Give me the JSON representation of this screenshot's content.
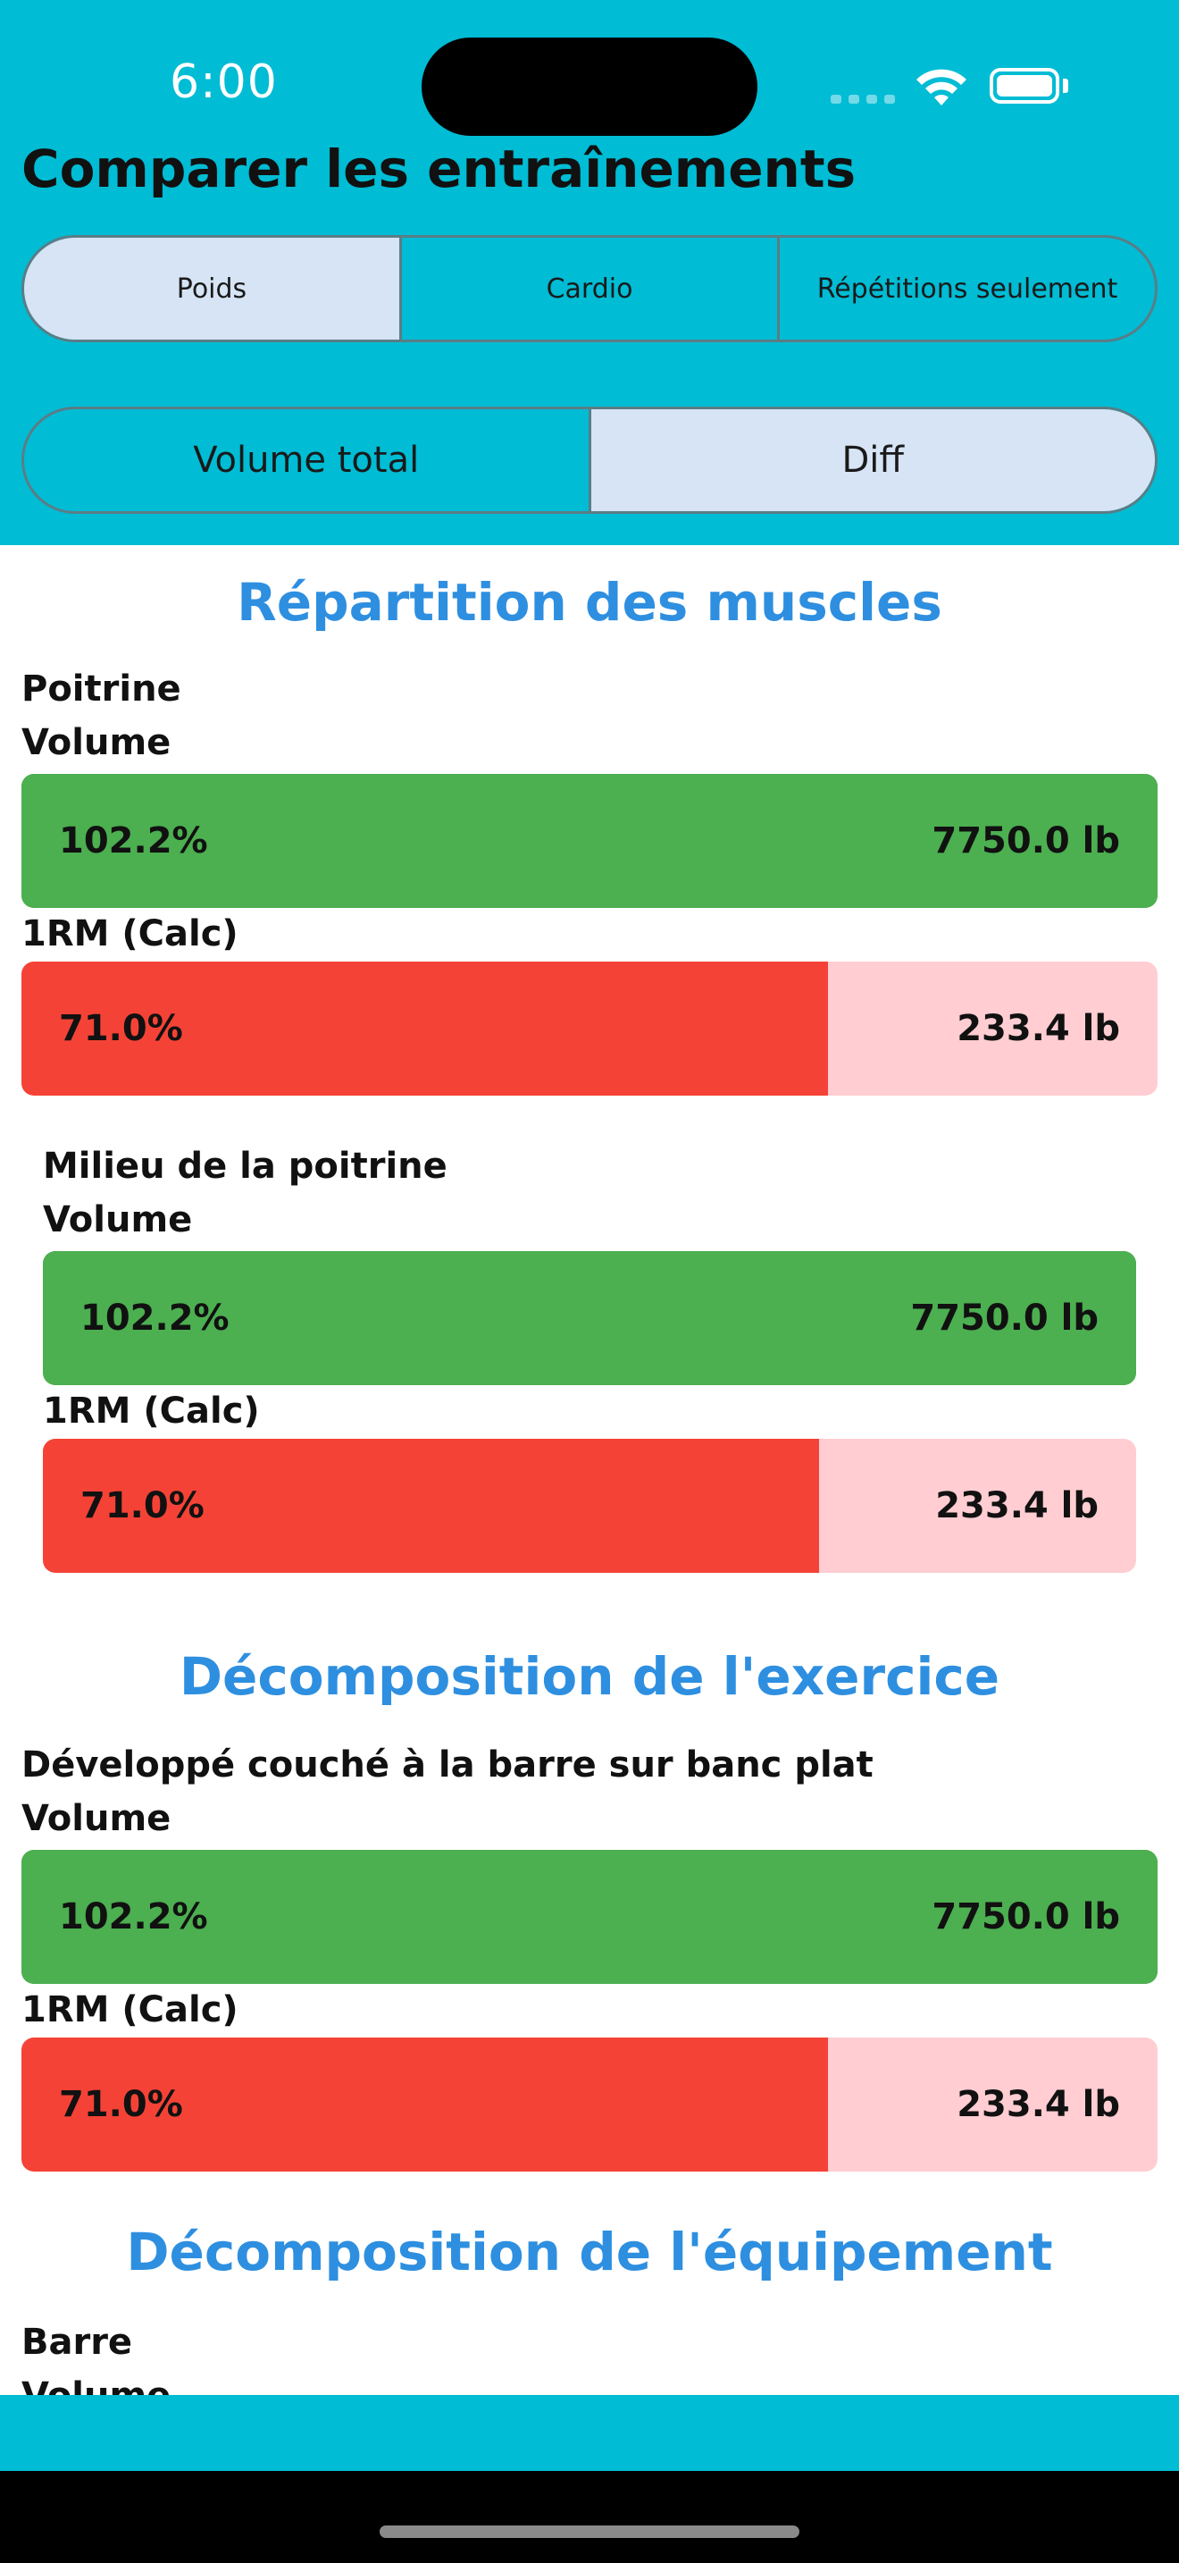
{
  "status": {
    "time": "6:00",
    "icons": [
      "signal-icon",
      "wifi-icon",
      "battery-icon"
    ]
  },
  "header": {
    "title": "Comparer les entraînements",
    "color": "#00BCD4"
  },
  "type_tabs": {
    "options": [
      "Poids",
      "Cardio",
      "Répétitions seulement"
    ],
    "selected": "Poids"
  },
  "mode_tabs": {
    "options": [
      "Volume total",
      "Diff"
    ],
    "selected": "Diff"
  },
  "muscles": {
    "title": "Répartition des muscles",
    "groups": [
      {
        "name": "Poitrine",
        "volume_label": "Volume",
        "volume_pct": "102.2%",
        "volume_value": "7750.0 lb",
        "volume_fraction": 1.0,
        "orm_label": "1RM (Calc)",
        "orm_pct": "71.0%",
        "orm_value": "233.4 lb",
        "orm_fraction": 0.71
      },
      {
        "name": "Milieu de la poitrine",
        "volume_label": "Volume",
        "volume_pct": "102.2%",
        "volume_value": "7750.0 lb",
        "volume_fraction": 1.0,
        "orm_label": "1RM (Calc)",
        "orm_pct": "71.0%",
        "orm_value": "233.4 lb",
        "orm_fraction": 0.71
      }
    ]
  },
  "exercises": {
    "title": "Décomposition de l'exercice",
    "groups": [
      {
        "name": "Développé couché à la barre sur banc plat",
        "volume_label": "Volume",
        "volume_pct": "102.2%",
        "volume_value": "7750.0 lb",
        "volume_fraction": 1.0,
        "orm_label": "1RM (Calc)",
        "orm_pct": "71.0%",
        "orm_value": "233.4 lb",
        "orm_fraction": 0.71
      }
    ]
  },
  "equipment": {
    "title": "Décomposition de l'équipement",
    "groups": [
      {
        "name": "Barre",
        "volume_label": "Volume"
      }
    ]
  },
  "colors": {
    "accent": "#2E8FE0",
    "increase": "#4CAF50",
    "decrease": "#F44336",
    "decrease_track": "#FFCDD2",
    "selected_segment": "#D6E4F5"
  }
}
